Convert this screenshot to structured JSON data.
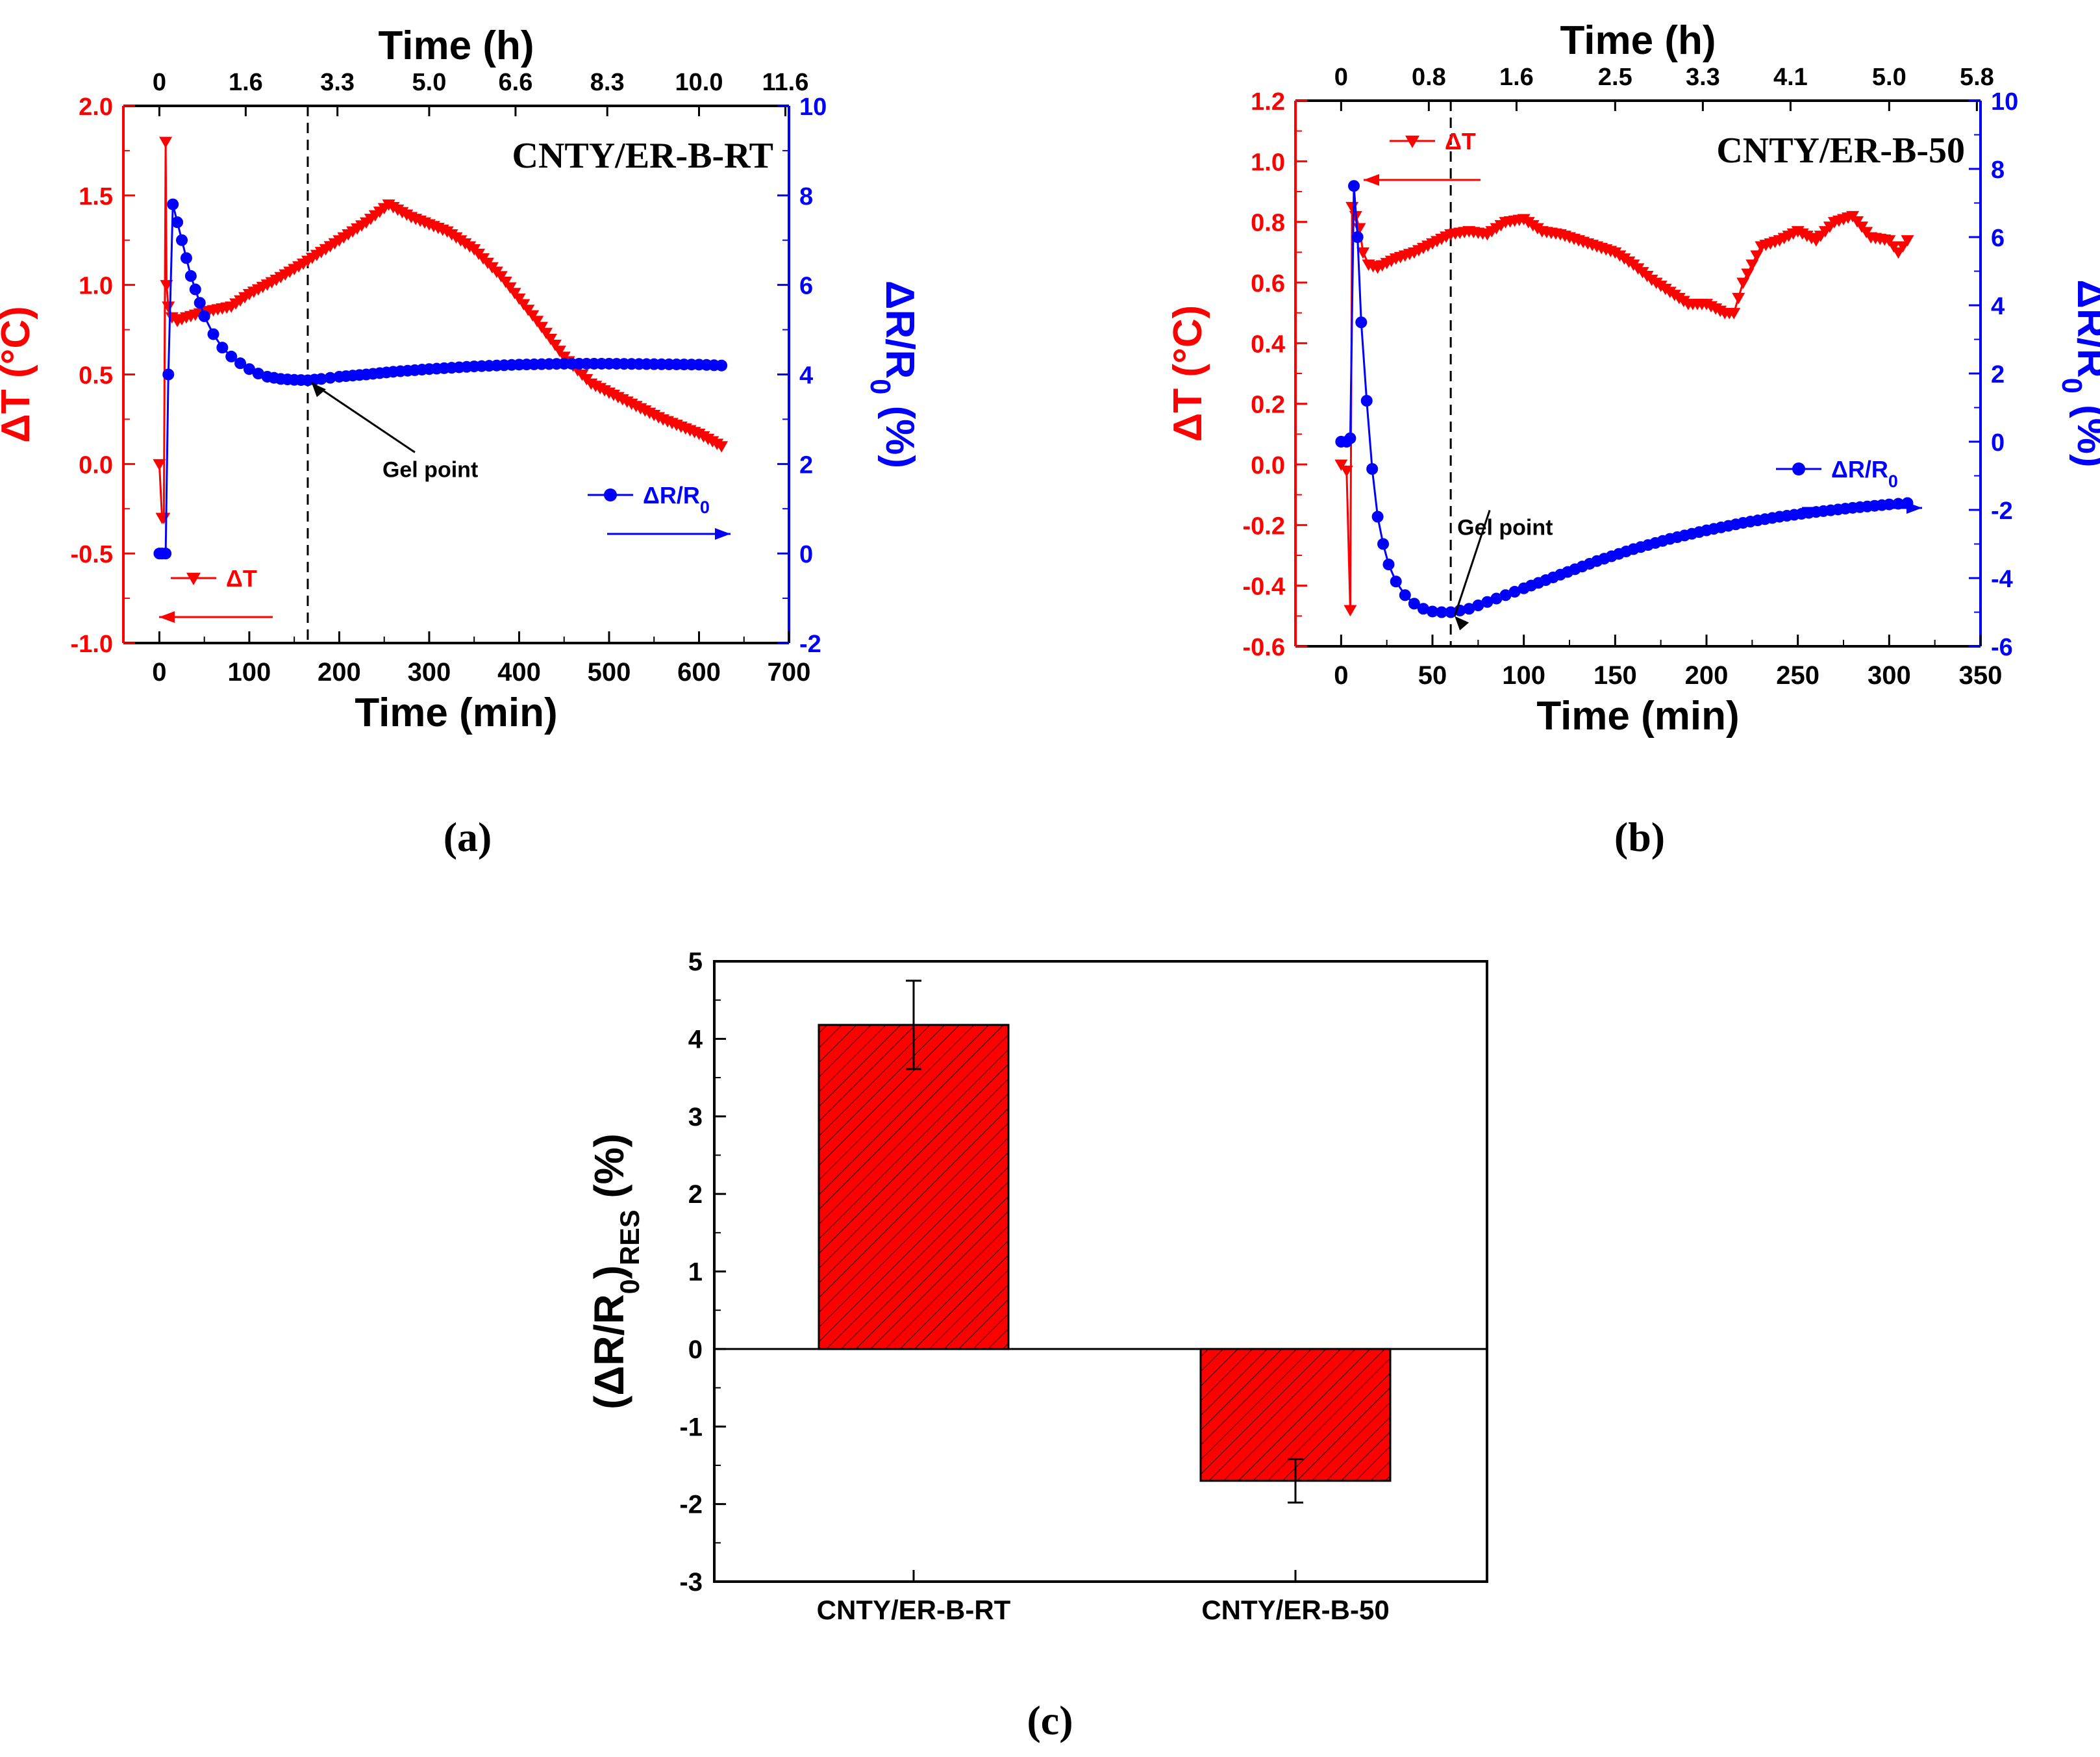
{
  "figure": {
    "panels": [
      {
        "id": "a",
        "caption": "(a)"
      },
      {
        "id": "b",
        "caption": "(b)"
      },
      {
        "id": "c",
        "caption": "(c)"
      }
    ]
  },
  "colors": {
    "dT": "#ff0000",
    "dR": "#0000ff",
    "bar": "#ff0000",
    "axis": "#000000"
  },
  "chart_data": [
    {
      "type": "line",
      "panel": "a",
      "title": "CNTY/ER-B-RT",
      "xlabel": "Time (min)",
      "top_xlabel": "Time (h)",
      "ylabel_left": "ΔT (°C)",
      "ylabel_right": "ΔR/R0 (%)",
      "xlim": [
        -40,
        700
      ],
      "x_ticks": [
        "0",
        "100",
        "200",
        "300",
        "400",
        "500",
        "600",
        "700"
      ],
      "ylim_left": [
        -1.0,
        2.0
      ],
      "y_left_ticks": [
        "-1.0",
        "-0.5",
        "0.0",
        "0.5",
        "1.0",
        "1.5",
        "2.0"
      ],
      "ylim_right": [
        -2,
        10
      ],
      "y_right_ticks": [
        "-2",
        "0",
        "2",
        "4",
        "6",
        "8",
        "10"
      ],
      "top_ticks": [
        {
          "label": "0",
          "x": 0
        },
        {
          "label": "1.6",
          "x": 96
        },
        {
          "label": "3.3",
          "x": 198
        },
        {
          "label": "5.0",
          "x": 300
        },
        {
          "label": "6.6",
          "x": 396
        },
        {
          "label": "8.3",
          "x": 498
        },
        {
          "label": "10.0",
          "x": 600
        },
        {
          "label": "11.6",
          "x": 696
        }
      ],
      "gel_point": {
        "x": 165,
        "label": "Gel point",
        "target_y_right": 3.9
      },
      "legend": {
        "dT": "ΔT",
        "dR": "ΔR/R0"
      },
      "series": [
        {
          "name": "ΔT",
          "axis": "left",
          "x": [
            0,
            3,
            5,
            7,
            8,
            10,
            14,
            20,
            30,
            50,
            80,
            100,
            130,
            160,
            200,
            230,
            255,
            280,
            320,
            350,
            380,
            420,
            450,
            480,
            520,
            560,
            600,
            625
          ],
          "y": [
            0.0,
            -0.3,
            -0.3,
            1.8,
            1.0,
            0.88,
            0.82,
            0.8,
            0.82,
            0.85,
            0.88,
            0.95,
            1.03,
            1.12,
            1.25,
            1.35,
            1.45,
            1.38,
            1.3,
            1.2,
            1.05,
            0.8,
            0.6,
            0.45,
            0.35,
            0.25,
            0.17,
            0.1
          ]
        },
        {
          "name": "ΔR/R0",
          "axis": "right",
          "x": [
            0,
            3,
            7,
            10,
            15,
            20,
            25,
            30,
            35,
            40,
            45,
            50,
            60,
            70,
            80,
            90,
            100,
            110,
            120,
            135,
            150,
            165,
            180,
            200,
            230,
            260,
            300,
            350,
            400,
            450,
            500,
            550,
            600,
            625
          ],
          "y": [
            0,
            0,
            0,
            4,
            7.8,
            7.4,
            7.0,
            6.6,
            6.2,
            5.9,
            5.6,
            5.3,
            4.9,
            4.6,
            4.4,
            4.25,
            4.12,
            4.02,
            3.95,
            3.9,
            3.88,
            3.87,
            3.9,
            3.95,
            4.0,
            4.06,
            4.12,
            4.18,
            4.22,
            4.24,
            4.24,
            4.23,
            4.22,
            4.2
          ]
        }
      ]
    },
    {
      "type": "line",
      "panel": "b",
      "title": "CNTY/ER-B-50",
      "xlabel": "Time (min)",
      "top_xlabel": "Time (h)",
      "ylabel_left": "ΔT (°C)",
      "ylabel_right": "ΔR/R0 (%)",
      "xlim": [
        -25,
        350
      ],
      "x_ticks": [
        "0",
        "50",
        "100",
        "150",
        "200",
        "250",
        "300",
        "350"
      ],
      "ylim_left": [
        -0.6,
        1.2
      ],
      "y_left_ticks": [
        "-0.6",
        "-0.4",
        "-0.2",
        "0.0",
        "0.2",
        "0.4",
        "0.6",
        "0.8",
        "1.0",
        "1.2"
      ],
      "ylim_right": [
        -6,
        10
      ],
      "y_right_ticks": [
        "-6",
        "-4",
        "-2",
        "0",
        "2",
        "4",
        "6",
        "8",
        "10"
      ],
      "top_ticks": [
        {
          "label": "0",
          "x": 0
        },
        {
          "label": "0.8",
          "x": 48
        },
        {
          "label": "1.6",
          "x": 96
        },
        {
          "label": "2.5",
          "x": 150
        },
        {
          "label": "3.3",
          "x": 198
        },
        {
          "label": "4.1",
          "x": 246
        },
        {
          "label": "5.0",
          "x": 300
        },
        {
          "label": "5.8",
          "x": 348
        }
      ],
      "gel_point": {
        "x": 60,
        "label": "Gel point",
        "target_y_right": -5.0
      },
      "legend": {
        "dT": "ΔT",
        "dR": "ΔR/R0"
      },
      "series": [
        {
          "name": "ΔT",
          "axis": "left",
          "x": [
            0,
            3,
            5,
            6,
            8,
            10,
            12,
            15,
            20,
            30,
            40,
            50,
            60,
            70,
            80,
            90,
            100,
            110,
            120,
            130,
            140,
            150,
            160,
            170,
            180,
            190,
            200,
            210,
            215,
            220,
            230,
            240,
            250,
            260,
            270,
            280,
            290,
            300,
            305,
            310
          ],
          "y": [
            0.0,
            -0.02,
            -0.48,
            0.85,
            0.82,
            0.78,
            0.7,
            0.66,
            0.65,
            0.68,
            0.7,
            0.73,
            0.76,
            0.77,
            0.76,
            0.8,
            0.81,
            0.77,
            0.76,
            0.74,
            0.72,
            0.7,
            0.66,
            0.61,
            0.57,
            0.53,
            0.53,
            0.5,
            0.5,
            0.6,
            0.72,
            0.74,
            0.77,
            0.74,
            0.8,
            0.82,
            0.75,
            0.74,
            0.7,
            0.74
          ]
        },
        {
          "name": "ΔR/R0",
          "axis": "right",
          "x": [
            0,
            3,
            5,
            7,
            9,
            11,
            14,
            17,
            20,
            23,
            26,
            30,
            35,
            40,
            45,
            50,
            55,
            60,
            70,
            80,
            90,
            100,
            120,
            140,
            160,
            180,
            200,
            220,
            240,
            260,
            280,
            300,
            310
          ],
          "y": [
            0,
            0,
            0.1,
            7.5,
            6.0,
            3.5,
            1.2,
            -0.8,
            -2.2,
            -3.0,
            -3.6,
            -4.1,
            -4.5,
            -4.75,
            -4.9,
            -4.98,
            -5.0,
            -5.0,
            -4.9,
            -4.7,
            -4.5,
            -4.3,
            -3.9,
            -3.5,
            -3.15,
            -2.85,
            -2.6,
            -2.38,
            -2.2,
            -2.06,
            -1.94,
            -1.84,
            -1.8
          ]
        }
      ]
    },
    {
      "type": "bar",
      "panel": "c",
      "ylabel": "(ΔR/R0)RES (%)",
      "categories": [
        "CNTY/ER-B-RT",
        "CNTY/ER-B-50"
      ],
      "values": [
        4.18,
        -1.7
      ],
      "errors": [
        0.57,
        0.28
      ],
      "ylim": [
        -3,
        5
      ],
      "y_ticks": [
        "-3",
        "-2",
        "-1",
        "0",
        "1",
        "2",
        "3",
        "4",
        "5"
      ]
    }
  ]
}
